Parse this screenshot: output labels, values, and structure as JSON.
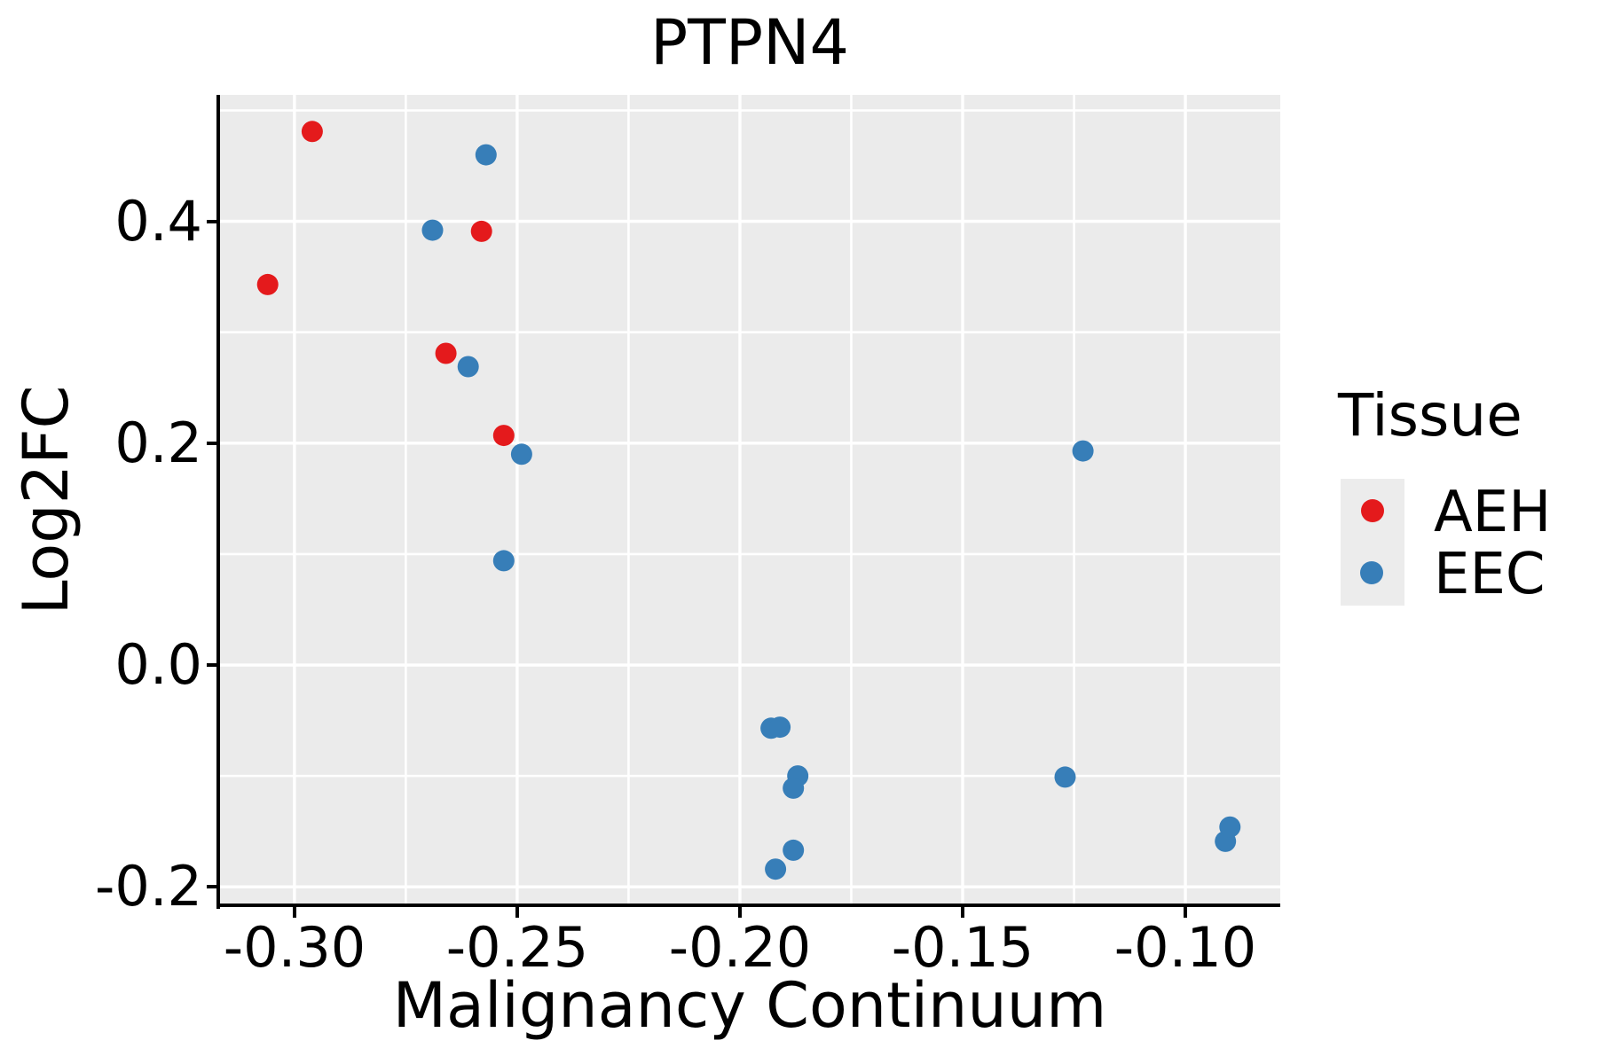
{
  "chart_data": {
    "type": "scatter",
    "title": "PTPN4",
    "xlabel": "Malignancy Continuum",
    "ylabel": "Log2FC",
    "xlim": [
      -0.3169,
      -0.0787
    ],
    "ylim": [
      -0.2166,
      0.514
    ],
    "grid": true,
    "panel_background": "#EBEBEB",
    "grid_color": "#FFFFFF",
    "x_ticks": {
      "values": [
        -0.3,
        -0.25,
        -0.2,
        -0.15,
        -0.1
      ],
      "labels": [
        "-0.30",
        "-0.25",
        "-0.20",
        "-0.15",
        "-0.10"
      ]
    },
    "y_ticks": {
      "values": [
        0.4,
        0.2,
        0.0,
        -0.2
      ],
      "labels": [
        "0.4",
        "0.2",
        "0.0",
        "-0.2"
      ]
    },
    "x_minor_gridlines": [
      -0.275,
      -0.225,
      -0.175,
      -0.125
    ],
    "y_minor_gridlines": [
      0.5,
      0.3,
      0.1,
      -0.1
    ],
    "legend": {
      "title": "Tissue",
      "position": "right"
    },
    "series": [
      {
        "name": "AEH",
        "color": "#E41A1C",
        "points": [
          [
            -0.306,
            0.343
          ],
          [
            -0.296,
            0.481
          ],
          [
            -0.266,
            0.281
          ],
          [
            -0.258,
            0.391
          ],
          [
            -0.253,
            0.207
          ]
        ]
      },
      {
        "name": "EEC",
        "color": "#377EB8",
        "points": [
          [
            -0.269,
            0.392
          ],
          [
            -0.261,
            0.269
          ],
          [
            -0.257,
            0.46
          ],
          [
            -0.253,
            0.094
          ],
          [
            -0.249,
            0.19
          ],
          [
            -0.193,
            -0.057
          ],
          [
            -0.191,
            -0.056
          ],
          [
            -0.187,
            -0.1
          ],
          [
            -0.188,
            -0.111
          ],
          [
            -0.188,
            -0.167
          ],
          [
            -0.192,
            -0.184
          ],
          [
            -0.127,
            -0.101
          ],
          [
            -0.123,
            0.193
          ],
          [
            -0.091,
            -0.159
          ],
          [
            -0.09,
            -0.146
          ]
        ]
      }
    ]
  }
}
